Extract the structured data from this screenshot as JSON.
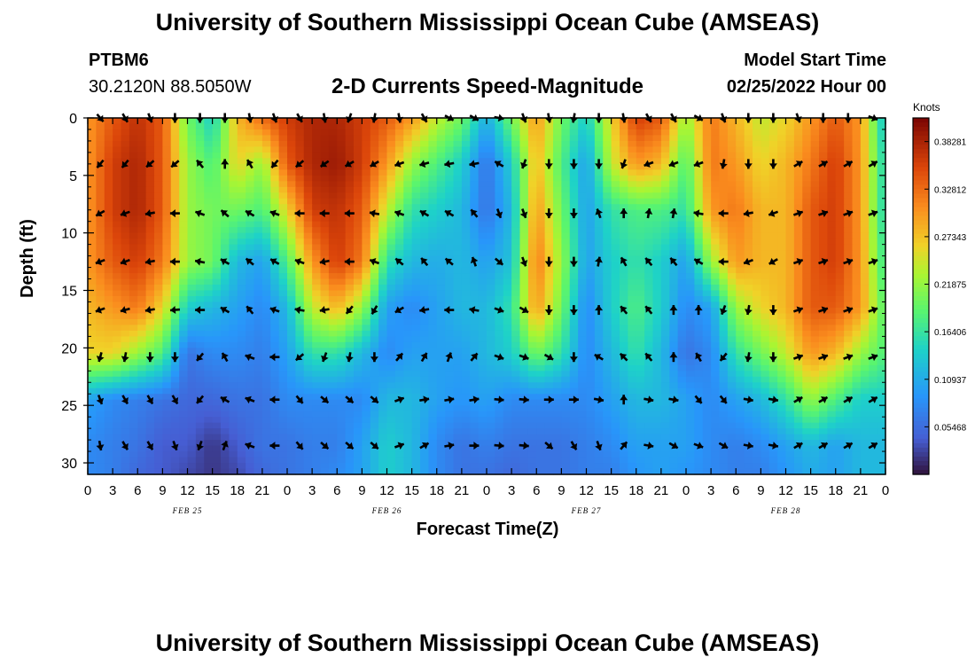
{
  "page": {
    "title": "University of Southern Mississippi Ocean Cube (AMSEAS)",
    "title_repeat": "University of Southern Mississippi Ocean Cube (AMSEAS)",
    "station": "PTBM6",
    "coords": "30.2120N  88.5050W",
    "subtitle": "2-D Currents Speed-Magnitude",
    "model_start_label": "Model Start Time",
    "model_start_value": "02/25/2022 Hour 00"
  },
  "chart_data": {
    "type": "heatmap",
    "title": "2-D Currents Speed-Magnitude",
    "xlabel": "Forecast Time(Z)",
    "ylabel": "Depth (ft)",
    "x_ticks": [
      "0",
      "3",
      "6",
      "9",
      "12",
      "15",
      "18",
      "21",
      "0",
      "3",
      "6",
      "9",
      "12",
      "15",
      "18",
      "21",
      "0",
      "3",
      "6",
      "9",
      "12",
      "15",
      "18",
      "21",
      "0",
      "3",
      "6",
      "9",
      "12",
      "15",
      "18",
      "21",
      "0"
    ],
    "x_range_hours": [
      0,
      96
    ],
    "date_labels": [
      {
        "label": "FEB 25",
        "hour": 12
      },
      {
        "label": "FEB 26",
        "hour": 36
      },
      {
        "label": "FEB 27",
        "hour": 60
      },
      {
        "label": "FEB 28",
        "hour": 84
      }
    ],
    "y_ticks": [
      0,
      5,
      10,
      15,
      20,
      25,
      30
    ],
    "y_range": [
      0,
      31
    ],
    "colorbar": {
      "unit": "Knots",
      "min": 0.0,
      "max": 0.41,
      "tick_labels": [
        "0.38281",
        "0.32812",
        "0.27343",
        "0.21875",
        "0.16406",
        "0.10937",
        "0.05468"
      ],
      "tick_values": [
        0.38281,
        0.32812,
        0.27343,
        0.21875,
        0.16406,
        0.10937,
        0.05468
      ],
      "colormap": "turbo"
    },
    "speed_grid_times": [
      0,
      3,
      6,
      9,
      12,
      15,
      18,
      21,
      24,
      27,
      30,
      33,
      36,
      39,
      42,
      45,
      48,
      51,
      54,
      57,
      60,
      63,
      66,
      69,
      72,
      75,
      78,
      81,
      84,
      87,
      90,
      93,
      96
    ],
    "speed_grid_depths": [
      0,
      4,
      8,
      12.5,
      16.5,
      20.5,
      24.5,
      28.5,
      31
    ],
    "speed": [
      [
        0.3,
        0.34,
        0.37,
        0.34,
        0.2,
        0.14,
        0.28,
        0.33,
        0.36,
        0.38,
        0.38,
        0.36,
        0.34,
        0.3,
        0.24,
        0.2,
        0.11,
        0.2,
        0.3,
        0.2,
        0.14,
        0.26,
        0.36,
        0.34,
        0.22,
        0.32,
        0.28,
        0.24,
        0.26,
        0.3,
        0.34,
        0.3,
        0.12
      ],
      [
        0.3,
        0.36,
        0.38,
        0.34,
        0.22,
        0.18,
        0.26,
        0.22,
        0.34,
        0.38,
        0.39,
        0.36,
        0.3,
        0.22,
        0.18,
        0.14,
        0.06,
        0.14,
        0.28,
        0.18,
        0.1,
        0.24,
        0.3,
        0.28,
        0.18,
        0.32,
        0.3,
        0.26,
        0.28,
        0.32,
        0.36,
        0.3,
        0.14
      ],
      [
        0.3,
        0.36,
        0.38,
        0.34,
        0.22,
        0.2,
        0.2,
        0.18,
        0.26,
        0.36,
        0.37,
        0.34,
        0.24,
        0.16,
        0.14,
        0.12,
        0.06,
        0.12,
        0.3,
        0.2,
        0.1,
        0.16,
        0.18,
        0.18,
        0.16,
        0.3,
        0.32,
        0.28,
        0.28,
        0.34,
        0.36,
        0.3,
        0.14
      ],
      [
        0.3,
        0.34,
        0.36,
        0.32,
        0.22,
        0.2,
        0.12,
        0.1,
        0.18,
        0.3,
        0.36,
        0.32,
        0.16,
        0.12,
        0.11,
        0.12,
        0.1,
        0.13,
        0.32,
        0.22,
        0.1,
        0.14,
        0.16,
        0.14,
        0.1,
        0.22,
        0.3,
        0.28,
        0.28,
        0.34,
        0.36,
        0.3,
        0.16
      ],
      [
        0.28,
        0.3,
        0.32,
        0.26,
        0.14,
        0.12,
        0.1,
        0.08,
        0.12,
        0.24,
        0.28,
        0.22,
        0.1,
        0.08,
        0.1,
        0.12,
        0.12,
        0.16,
        0.3,
        0.2,
        0.08,
        0.14,
        0.18,
        0.14,
        0.08,
        0.1,
        0.22,
        0.26,
        0.28,
        0.34,
        0.34,
        0.3,
        0.18
      ],
      [
        0.26,
        0.26,
        0.22,
        0.18,
        0.06,
        0.08,
        0.08,
        0.07,
        0.1,
        0.16,
        0.16,
        0.12,
        0.08,
        0.1,
        0.1,
        0.1,
        0.12,
        0.14,
        0.2,
        0.16,
        0.08,
        0.12,
        0.16,
        0.12,
        0.06,
        0.08,
        0.16,
        0.2,
        0.24,
        0.3,
        0.28,
        0.22,
        0.18
      ],
      [
        0.1,
        0.08,
        0.07,
        0.06,
        0.05,
        0.05,
        0.06,
        0.06,
        0.08,
        0.08,
        0.08,
        0.08,
        0.12,
        0.12,
        0.1,
        0.09,
        0.1,
        0.08,
        0.08,
        0.08,
        0.08,
        0.1,
        0.12,
        0.12,
        0.1,
        0.08,
        0.1,
        0.12,
        0.16,
        0.22,
        0.18,
        0.14,
        0.14
      ],
      [
        0.08,
        0.07,
        0.06,
        0.04,
        0.04,
        0.02,
        0.04,
        0.06,
        0.06,
        0.07,
        0.07,
        0.1,
        0.14,
        0.12,
        0.08,
        0.06,
        0.07,
        0.06,
        0.06,
        0.06,
        0.07,
        0.08,
        0.1,
        0.1,
        0.1,
        0.08,
        0.07,
        0.08,
        0.1,
        0.12,
        0.1,
        0.12,
        0.12
      ],
      [
        0.08,
        0.07,
        0.05,
        0.04,
        0.03,
        0.02,
        0.03,
        0.05,
        0.06,
        0.07,
        0.08,
        0.1,
        0.14,
        0.12,
        0.08,
        0.06,
        0.06,
        0.05,
        0.06,
        0.06,
        0.07,
        0.07,
        0.09,
        0.1,
        0.09,
        0.08,
        0.07,
        0.07,
        0.09,
        0.11,
        0.1,
        0.12,
        0.12
      ]
    ],
    "vector_depths": [
      0,
      4,
      8.3,
      12.5,
      16.7,
      20.8,
      24.5,
      28.5
    ],
    "vector_times": [
      1.5,
      4.5,
      7.5,
      10.5,
      13.5,
      16.5,
      19.5,
      22.5,
      25.5,
      28.5,
      31.5,
      34.5,
      37.5,
      40.5,
      43.5,
      46.5,
      49.5,
      52.5,
      55.5,
      58.5,
      61.5,
      64.5,
      67.5,
      70.5,
      73.5,
      76.5,
      79.5,
      82.5,
      85.5,
      88.5,
      91.5,
      94.5
    ],
    "vector_direction_deg": [
      [
        140,
        150,
        160,
        180,
        180,
        180,
        170,
        160,
        150,
        170,
        200,
        190,
        170,
        150,
        120,
        120,
        100,
        160,
        170,
        190,
        180,
        170,
        150,
        150,
        120,
        160,
        180,
        180,
        160,
        180,
        180,
        110
      ],
      [
        220,
        220,
        230,
        230,
        320,
        0,
        330,
        220,
        230,
        235,
        240,
        240,
        250,
        255,
        260,
        260,
        300,
        200,
        180,
        180,
        180,
        200,
        250,
        250,
        250,
        190,
        180,
        180,
        60,
        60,
        60,
        60
      ],
      [
        240,
        250,
        260,
        270,
        290,
        310,
        300,
        290,
        270,
        270,
        270,
        280,
        290,
        300,
        300,
        320,
        160,
        160,
        180,
        180,
        340,
        0,
        10,
        10,
        280,
        270,
        260,
        250,
        70,
        70,
        70,
        70
      ],
      [
        250,
        250,
        260,
        270,
        280,
        300,
        310,
        300,
        290,
        260,
        270,
        290,
        310,
        320,
        310,
        340,
        130,
        160,
        180,
        180,
        10,
        330,
        320,
        320,
        300,
        270,
        250,
        240,
        70,
        70,
        70,
        70
      ],
      [
        250,
        255,
        260,
        265,
        270,
        300,
        320,
        290,
        280,
        260,
        220,
        210,
        240,
        260,
        270,
        280,
        110,
        120,
        180,
        180,
        0,
        320,
        320,
        0,
        0,
        200,
        190,
        180,
        70,
        70,
        70,
        70
      ],
      [
        195,
        190,
        180,
        180,
        220,
        330,
        290,
        270,
        230,
        200,
        190,
        180,
        40,
        30,
        20,
        40,
        110,
        110,
        120,
        180,
        300,
        315,
        320,
        0,
        330,
        220,
        190,
        180,
        70,
        70,
        70,
        70
      ],
      [
        160,
        150,
        150,
        150,
        220,
        300,
        290,
        270,
        140,
        130,
        130,
        130,
        70,
        80,
        80,
        80,
        95,
        95,
        90,
        90,
        100,
        0,
        100,
        100,
        140,
        140,
        100,
        100,
        60,
        60,
        60,
        60
      ],
      [
        170,
        150,
        150,
        160,
        200,
        20,
        290,
        270,
        140,
        130,
        130,
        130,
        70,
        60,
        80,
        90,
        95,
        95,
        130,
        150,
        160,
        40,
        100,
        120,
        110,
        120,
        100,
        100,
        60,
        60,
        60,
        60
      ]
    ]
  }
}
